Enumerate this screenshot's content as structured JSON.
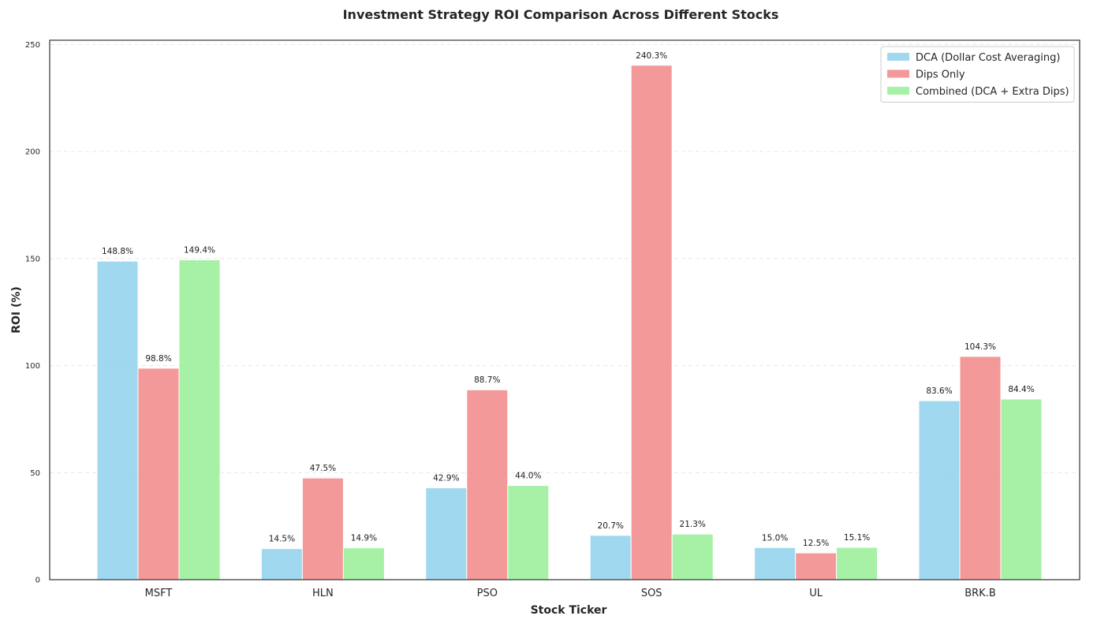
{
  "chart_data": {
    "type": "bar",
    "title": "Investment Strategy ROI Comparison Across Different Stocks",
    "xlabel": "Stock Ticker",
    "ylabel": "ROI (%)",
    "ylim": [
      0,
      252
    ],
    "yticks": [
      0,
      50,
      100,
      150,
      200,
      250
    ],
    "grid": true,
    "legend_position": "top-right",
    "categories": [
      "MSFT",
      "HLN",
      "PSO",
      "SOS",
      "UL",
      "BRK.B"
    ],
    "series": [
      {
        "name": "DCA (Dollar Cost Averaging)",
        "color": "#87CEEB",
        "values": [
          148.8,
          14.5,
          42.9,
          20.7,
          15.0,
          83.6
        ],
        "labels": [
          "148.8%",
          "14.5%",
          "42.9%",
          "20.7%",
          "15.0%",
          "83.6%"
        ]
      },
      {
        "name": "Dips Only",
        "color": "#F08080",
        "values": [
          98.8,
          47.5,
          88.7,
          240.3,
          12.5,
          104.3
        ],
        "labels": [
          "98.8%",
          "47.5%",
          "88.7%",
          "240.3%",
          "12.5%",
          "104.3%"
        ]
      },
      {
        "name": "Combined (DCA + Extra Dips)",
        "color": "#90EE90",
        "values": [
          149.4,
          14.9,
          44.0,
          21.3,
          15.1,
          84.4
        ],
        "labels": [
          "149.4%",
          "14.9%",
          "44.0%",
          "21.3%",
          "15.1%",
          "84.4%"
        ]
      }
    ]
  }
}
